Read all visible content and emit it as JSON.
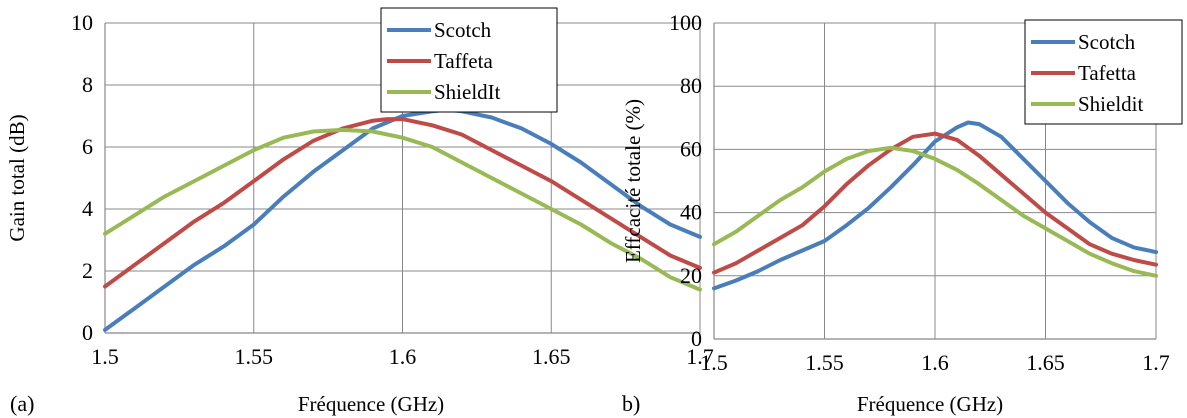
{
  "chart_data": [
    {
      "type": "line",
      "panel_label": "(a)",
      "xlabel": "Fréquence (GHz)",
      "ylabel": "Gain total (dB)",
      "xlim": [
        1.5,
        1.7
      ],
      "ylim": [
        0,
        10
      ],
      "xticks": [
        "1.5",
        "1.55",
        "1.6",
        "1.65",
        "1.7"
      ],
      "yticks": [
        "0",
        "2",
        "4",
        "6",
        "8",
        "10"
      ],
      "grid": true,
      "legend_position": "top-right",
      "series": [
        {
          "name": "Scotch",
          "color": "#4a7ebb",
          "x": [
            1.5,
            1.51,
            1.52,
            1.53,
            1.54,
            1.55,
            1.56,
            1.57,
            1.58,
            1.59,
            1.6,
            1.61,
            1.615,
            1.62,
            1.63,
            1.64,
            1.65,
            1.66,
            1.67,
            1.68,
            1.69,
            1.7
          ],
          "y": [
            0.1,
            0.8,
            1.5,
            2.2,
            2.8,
            3.5,
            4.4,
            5.2,
            5.9,
            6.6,
            7.0,
            7.15,
            7.2,
            7.15,
            6.95,
            6.6,
            6.1,
            5.5,
            4.8,
            4.1,
            3.5,
            3.1
          ]
        },
        {
          "name": "Taffeta",
          "color": "#be4b48",
          "x": [
            1.5,
            1.51,
            1.52,
            1.53,
            1.54,
            1.55,
            1.56,
            1.57,
            1.58,
            1.59,
            1.595,
            1.6,
            1.61,
            1.62,
            1.63,
            1.64,
            1.65,
            1.66,
            1.67,
            1.68,
            1.69,
            1.7
          ],
          "y": [
            1.5,
            2.2,
            2.9,
            3.6,
            4.2,
            4.9,
            5.6,
            6.2,
            6.6,
            6.85,
            6.9,
            6.9,
            6.7,
            6.4,
            5.9,
            5.4,
            4.9,
            4.3,
            3.7,
            3.1,
            2.5,
            2.1
          ]
        },
        {
          "name": "ShieldIt",
          "color": "#98b954",
          "x": [
            1.5,
            1.51,
            1.52,
            1.53,
            1.54,
            1.55,
            1.56,
            1.57,
            1.58,
            1.59,
            1.6,
            1.61,
            1.62,
            1.63,
            1.64,
            1.65,
            1.66,
            1.67,
            1.68,
            1.69,
            1.7
          ],
          "y": [
            3.2,
            3.8,
            4.4,
            4.9,
            5.4,
            5.9,
            6.3,
            6.5,
            6.55,
            6.5,
            6.3,
            6.0,
            5.5,
            5.0,
            4.5,
            4.0,
            3.5,
            2.9,
            2.4,
            1.8,
            1.4
          ]
        }
      ]
    },
    {
      "type": "line",
      "panel_label": "b)",
      "xlabel": "Fréquence (GHz)",
      "ylabel": "Effcacité totale (%)",
      "xlim": [
        1.5,
        1.7
      ],
      "ylim": [
        0,
        100
      ],
      "xticks": [
        "1.5",
        "1.55",
        "1.6",
        "1.65",
        "1.7"
      ],
      "yticks": [
        "0",
        "20",
        "40",
        "60",
        "80",
        "100"
      ],
      "grid": true,
      "legend_position": "top-right",
      "series": [
        {
          "name": "Scotch",
          "color": "#4a7ebb",
          "x": [
            1.5,
            1.51,
            1.52,
            1.53,
            1.54,
            1.55,
            1.56,
            1.57,
            1.58,
            1.59,
            1.6,
            1.61,
            1.615,
            1.62,
            1.63,
            1.64,
            1.65,
            1.66,
            1.67,
            1.68,
            1.69,
            1.7
          ],
          "y": [
            16,
            18.5,
            21.5,
            25,
            28,
            31,
            36,
            41.5,
            48,
            55,
            62.5,
            67,
            68.5,
            68,
            64,
            57,
            50,
            43,
            37,
            32,
            29,
            27.5
          ]
        },
        {
          "name": "Tafetta",
          "color": "#be4b48",
          "x": [
            1.5,
            1.51,
            1.52,
            1.53,
            1.54,
            1.55,
            1.56,
            1.57,
            1.58,
            1.59,
            1.6,
            1.61,
            1.62,
            1.63,
            1.64,
            1.65,
            1.66,
            1.67,
            1.68,
            1.69,
            1.7
          ],
          "y": [
            21,
            24,
            28,
            32,
            36,
            42,
            49,
            55,
            60,
            64,
            65,
            63,
            58,
            52,
            46,
            40,
            35,
            30,
            27,
            25,
            23.5
          ]
        },
        {
          "name": "Shieldit",
          "color": "#98b954",
          "x": [
            1.5,
            1.51,
            1.52,
            1.53,
            1.54,
            1.55,
            1.56,
            1.57,
            1.58,
            1.59,
            1.6,
            1.61,
            1.62,
            1.63,
            1.64,
            1.65,
            1.66,
            1.67,
            1.68,
            1.69,
            1.7
          ],
          "y": [
            30,
            34,
            39,
            44,
            48,
            53,
            57,
            59.5,
            60.5,
            59.5,
            57,
            53.5,
            49,
            44,
            39,
            35,
            31,
            27,
            24,
            21.5,
            20
          ]
        }
      ]
    }
  ]
}
